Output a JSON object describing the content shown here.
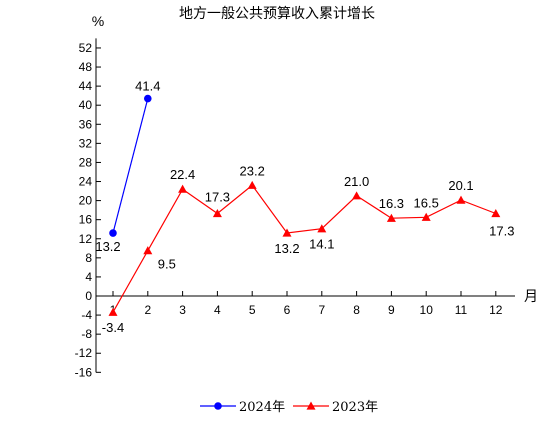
{
  "chart_data": {
    "type": "line",
    "title": "地方一般公共预算收入累计增长",
    "ylabel": "%",
    "xlabel": "月",
    "ylim": [
      -16,
      54
    ],
    "yticks": [
      52,
      48,
      44,
      40,
      36,
      32,
      28,
      24,
      20,
      16,
      12,
      8,
      4,
      0,
      -4,
      -8,
      -12,
      -16
    ],
    "categories": [
      "1",
      "2",
      "3",
      "4",
      "5",
      "6",
      "7",
      "8",
      "9",
      "10",
      "11",
      "12"
    ],
    "legend_position": "bottom",
    "grid": false,
    "series": [
      {
        "name": "2024年",
        "color": "#0000ff",
        "marker": "circle",
        "x": [
          "1",
          "2"
        ],
        "values": [
          13.2,
          41.4
        ],
        "labels": [
          "13.2",
          "41.4"
        ]
      },
      {
        "name": "2023年",
        "color": "#ff0000",
        "marker": "triangle",
        "x": [
          "1",
          "2",
          "3",
          "4",
          "5",
          "6",
          "7",
          "8",
          "9",
          "10",
          "11",
          "12"
        ],
        "values": [
          -3.4,
          9.5,
          22.4,
          17.3,
          23.2,
          13.2,
          14.1,
          21.0,
          16.3,
          16.5,
          20.1,
          17.3
        ],
        "labels": [
          "-3.4",
          "9.5",
          "22.4",
          "17.3",
          "23.2",
          "13.2",
          "14.1",
          "21.0",
          "16.3",
          "16.5",
          "20.1",
          "17.3"
        ]
      }
    ]
  }
}
